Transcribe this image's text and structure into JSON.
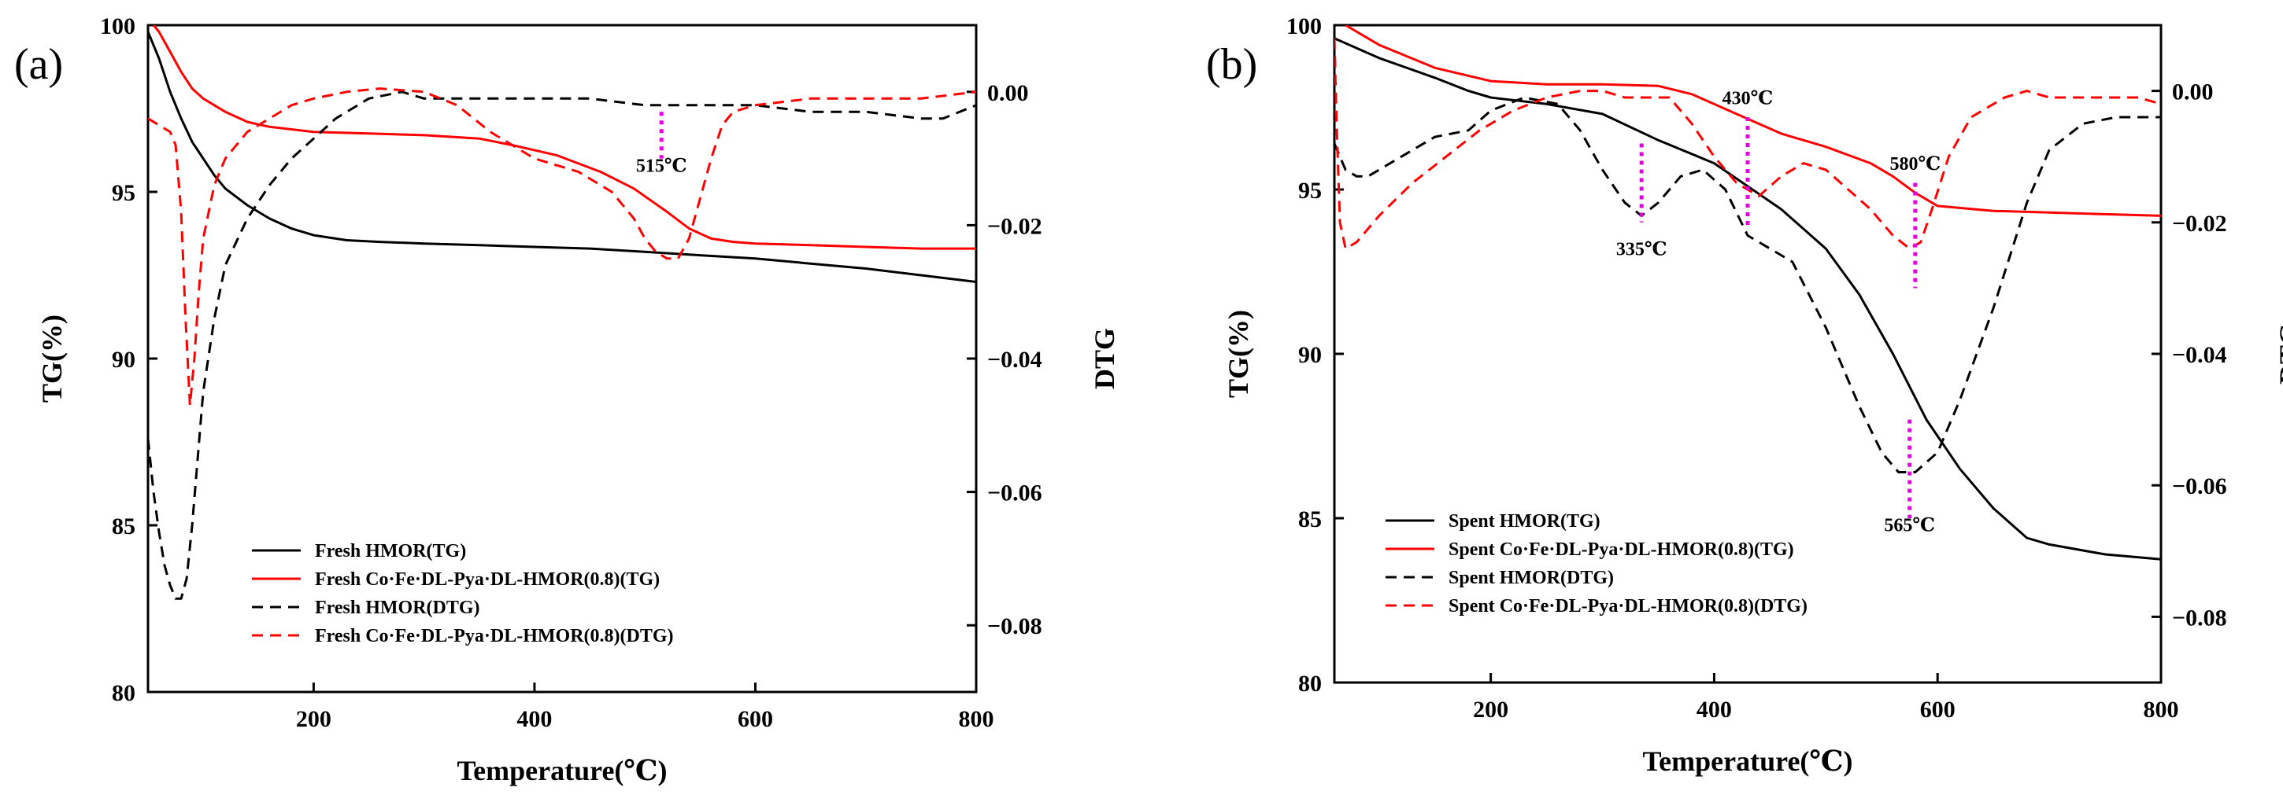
{
  "chart_data": [
    {
      "type": "line",
      "panel_label": "(a)",
      "xlabel": "Temperature(℃)",
      "ylabel": "TG(%)",
      "y2label": "DTG",
      "xlim": [
        50,
        800
      ],
      "ylim": [
        80,
        100
      ],
      "y2lim": [
        -0.09,
        0.01
      ],
      "xticks": [
        200,
        400,
        600,
        800
      ],
      "yticks": [
        80,
        85,
        90,
        95,
        100
      ],
      "y2ticks": [
        0.0,
        -0.02,
        -0.04,
        -0.06,
        -0.08
      ],
      "y2tick_labels": [
        "0.00",
        "−0.02",
        "−0.04",
        "−0.06",
        "−0.08"
      ],
      "legend_position": "lower-left",
      "series": [
        {
          "name": "Fresh HMOR(TG)",
          "axis": "left",
          "color": "#000000",
          "dash": "solid",
          "x": [
            50,
            60,
            70,
            80,
            90,
            100,
            110,
            120,
            140,
            160,
            180,
            200,
            230,
            260,
            300,
            350,
            400,
            450,
            500,
            550,
            600,
            650,
            700,
            750,
            800
          ],
          "y": [
            99.8,
            99.0,
            98.0,
            97.2,
            96.5,
            96.0,
            95.5,
            95.1,
            94.6,
            94.2,
            93.9,
            93.7,
            93.55,
            93.5,
            93.45,
            93.4,
            93.35,
            93.3,
            93.2,
            93.1,
            93.0,
            92.85,
            92.7,
            92.5,
            92.3
          ]
        },
        {
          "name": "Fresh Co·Fe·DL-Pya·DL-HMOR(0.8)(TG)",
          "axis": "left",
          "color": "#ff0000",
          "dash": "solid",
          "x": [
            55,
            60,
            70,
            80,
            90,
            100,
            120,
            140,
            160,
            200,
            250,
            300,
            350,
            380,
            420,
            460,
            490,
            520,
            540,
            560,
            580,
            600,
            650,
            700,
            750,
            800
          ],
          "y": [
            100,
            99.8,
            99.2,
            98.6,
            98.1,
            97.8,
            97.4,
            97.1,
            96.95,
            96.8,
            96.75,
            96.7,
            96.6,
            96.4,
            96.1,
            95.6,
            95.1,
            94.4,
            93.9,
            93.6,
            93.5,
            93.45,
            93.4,
            93.35,
            93.3,
            93.3
          ]
        },
        {
          "name": "Fresh HMOR(DTG)",
          "axis": "right",
          "color": "#000000",
          "dash": "dashed",
          "x": [
            50,
            55,
            60,
            65,
            70,
            75,
            80,
            85,
            90,
            95,
            100,
            110,
            120,
            140,
            160,
            180,
            200,
            220,
            250,
            280,
            300,
            350,
            400,
            450,
            500,
            550,
            600,
            650,
            700,
            750,
            770,
            800
          ],
          "y": [
            -0.052,
            -0.06,
            -0.066,
            -0.071,
            -0.074,
            -0.076,
            -0.076,
            -0.073,
            -0.065,
            -0.055,
            -0.045,
            -0.034,
            -0.026,
            -0.019,
            -0.014,
            -0.01,
            -0.007,
            -0.004,
            -0.001,
            0.0,
            -0.001,
            -0.001,
            -0.001,
            -0.001,
            -0.002,
            -0.002,
            -0.002,
            -0.003,
            -0.003,
            -0.004,
            -0.004,
            -0.002
          ]
        },
        {
          "name": "Fresh Co·Fe·DL-Pya·DL-HMOR(0.8)(DTG)",
          "axis": "right",
          "color": "#ff0000",
          "dash": "dashed",
          "x": [
            50,
            60,
            70,
            75,
            80,
            84,
            88,
            92,
            96,
            100,
            110,
            120,
            140,
            160,
            180,
            200,
            230,
            260,
            300,
            330,
            360,
            400,
            440,
            470,
            490,
            500,
            510,
            520,
            530,
            540,
            550,
            560,
            570,
            580,
            600,
            650,
            700,
            750,
            800
          ],
          "y": [
            -0.004,
            -0.005,
            -0.006,
            -0.008,
            -0.018,
            -0.034,
            -0.047,
            -0.04,
            -0.03,
            -0.022,
            -0.014,
            -0.01,
            -0.006,
            -0.004,
            -0.002,
            -0.001,
            0.0,
            0.0005,
            0.0,
            -0.002,
            -0.006,
            -0.01,
            -0.012,
            -0.015,
            -0.019,
            -0.022,
            -0.024,
            -0.025,
            -0.025,
            -0.022,
            -0.016,
            -0.01,
            -0.005,
            -0.003,
            -0.002,
            -0.001,
            -0.001,
            -0.001,
            0.0
          ]
        }
      ],
      "annotations": [
        {
          "text": "515℃",
          "x": 515,
          "y_top": -0.003,
          "y_bottom": -0.01,
          "label_y": -0.012
        }
      ]
    },
    {
      "type": "line",
      "panel_label": "(b)",
      "xlabel": "Temperature(℃)",
      "ylabel": "TG(%)",
      "y2label": "DTG",
      "xlim": [
        60,
        800
      ],
      "ylim": [
        80,
        100
      ],
      "y2lim": [
        -0.09,
        0.01
      ],
      "xticks": [
        200,
        400,
        600,
        800
      ],
      "yticks": [
        80,
        85,
        90,
        95,
        100
      ],
      "y2ticks": [
        0.0,
        -0.02,
        -0.04,
        -0.06,
        -0.08
      ],
      "y2tick_labels": [
        "0.00",
        "−0.02",
        "−0.04",
        "−0.06",
        "−0.08"
      ],
      "legend_position": "lower-left",
      "series": [
        {
          "name": "Spent HMOR(TG)",
          "axis": "left",
          "color": "#000000",
          "dash": "solid",
          "x": [
            60,
            80,
            100,
            150,
            180,
            200,
            250,
            300,
            350,
            400,
            430,
            460,
            500,
            530,
            560,
            590,
            620,
            650,
            680,
            700,
            750,
            800
          ],
          "y": [
            99.6,
            99.3,
            99.0,
            98.4,
            98.0,
            97.8,
            97.6,
            97.3,
            96.5,
            95.8,
            95.1,
            94.4,
            93.2,
            91.8,
            90.0,
            88.0,
            86.5,
            85.3,
            84.4,
            84.2,
            83.9,
            83.75
          ]
        },
        {
          "name": "Spent Co·Fe·DL-Pya·DL-HMOR(0.8)(TG)",
          "axis": "left",
          "color": "#ff0000",
          "dash": "solid",
          "x": [
            70,
            100,
            150,
            200,
            250,
            300,
            350,
            380,
            420,
            460,
            500,
            540,
            560,
            580,
            600,
            650,
            700,
            750,
            800
          ],
          "y": [
            100,
            99.4,
            98.7,
            98.3,
            98.2,
            98.2,
            98.15,
            97.9,
            97.3,
            96.7,
            96.3,
            95.8,
            95.4,
            94.9,
            94.5,
            94.35,
            94.3,
            94.25,
            94.2
          ]
        },
        {
          "name": "Spent HMOR(DTG)",
          "axis": "right",
          "color": "#000000",
          "dash": "dashed",
          "x": [
            60,
            70,
            80,
            90,
            100,
            120,
            150,
            180,
            200,
            230,
            260,
            280,
            300,
            320,
            335,
            350,
            370,
            390,
            410,
            430,
            450,
            470,
            500,
            530,
            550,
            565,
            580,
            600,
            620,
            650,
            680,
            700,
            730,
            760,
            790,
            800
          ],
          "y": [
            -0.008,
            -0.012,
            -0.013,
            -0.013,
            -0.012,
            -0.01,
            -0.007,
            -0.006,
            -0.003,
            -0.001,
            -0.002,
            -0.006,
            -0.012,
            -0.017,
            -0.019,
            -0.017,
            -0.013,
            -0.012,
            -0.015,
            -0.022,
            -0.024,
            -0.026,
            -0.036,
            -0.048,
            -0.055,
            -0.058,
            -0.058,
            -0.055,
            -0.047,
            -0.033,
            -0.017,
            -0.009,
            -0.005,
            -0.004,
            -0.004,
            -0.004
          ]
        },
        {
          "name": "Spent Co·Fe·DL-Pya·DL-HMOR(0.8)(DTG)",
          "axis": "right",
          "color": "#ff0000",
          "dash": "dashed",
          "x": [
            60,
            62,
            65,
            70,
            80,
            100,
            130,
            160,
            190,
            220,
            250,
            280,
            300,
            320,
            340,
            360,
            380,
            400,
            420,
            440,
            460,
            480,
            500,
            520,
            540,
            560,
            575,
            585,
            595,
            610,
            630,
            660,
            680,
            700,
            720,
            740,
            760,
            780,
            800
          ],
          "y": [
            0.008,
            -0.005,
            -0.02,
            -0.024,
            -0.023,
            -0.019,
            -0.014,
            -0.01,
            -0.006,
            -0.003,
            -0.001,
            0.0,
            0.0,
            -0.001,
            -0.001,
            -0.001,
            -0.005,
            -0.01,
            -0.014,
            -0.016,
            -0.013,
            -0.011,
            -0.012,
            -0.015,
            -0.018,
            -0.022,
            -0.024,
            -0.023,
            -0.018,
            -0.01,
            -0.004,
            -0.001,
            0.0,
            -0.001,
            -0.001,
            -0.001,
            -0.001,
            -0.001,
            -0.002
          ]
        }
      ],
      "annotations": [
        {
          "text": "335℃",
          "x": 335,
          "y_top": -0.008,
          "y_bottom": -0.02,
          "label_y": -0.025
        },
        {
          "text": "430℃",
          "x": 430,
          "y_top": -0.004,
          "y_bottom": -0.021,
          "label_y": -0.002
        },
        {
          "text": "580℃",
          "x": 580,
          "y_top": -0.014,
          "y_bottom": -0.03,
          "label_y": -0.012
        },
        {
          "text": "565℃",
          "x": 575,
          "y_top": -0.05,
          "y_bottom": -0.065,
          "label_y": -0.067
        }
      ]
    }
  ]
}
